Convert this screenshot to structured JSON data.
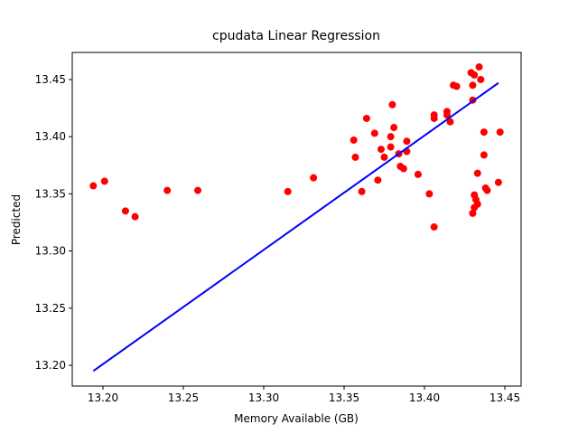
{
  "chart_data": {
    "type": "scatter",
    "title": "cpudata Linear Regression",
    "x_label": "Memory Available (GB)",
    "y_label": "Predicted",
    "xlim": [
      13.1809,
      13.4601
    ],
    "ylim": [
      13.1818,
      13.4737
    ],
    "xticks": [
      {
        "value": 13.2,
        "label": "13.20"
      },
      13.25,
      {
        "value": 13.3,
        "label": "13.30"
      },
      13.35,
      {
        "value": 13.4,
        "label": "13.40"
      },
      13.45
    ],
    "yticks": [
      {
        "value": 13.2,
        "label": "13.20"
      },
      13.25,
      {
        "value": 13.3,
        "label": "13.30"
      },
      13.35,
      {
        "value": 13.4,
        "label": "13.40"
      },
      13.45
    ],
    "series": [
      {
        "type": "scatter",
        "color": "#ff0000",
        "x": [
          13.194,
          13.201,
          13.214,
          13.22,
          13.24,
          13.259,
          13.315,
          13.331,
          13.356,
          13.357,
          13.361,
          13.364,
          13.369,
          13.371,
          13.373,
          13.375,
          13.379,
          13.38,
          13.379,
          13.381,
          13.384,
          13.385,
          13.387,
          13.389,
          13.389,
          13.396,
          13.403,
          13.406,
          13.406,
          13.406,
          13.414,
          13.414,
          13.416,
          13.418,
          13.42,
          13.429,
          13.43,
          13.431,
          13.43,
          13.431,
          13.432,
          13.431,
          13.43,
          13.433,
          13.433,
          13.434,
          13.435,
          13.437,
          13.437,
          13.438,
          13.439,
          13.447,
          13.446
        ],
        "values": [
          13.357,
          13.361,
          13.335,
          13.33,
          13.353,
          13.353,
          13.352,
          13.364,
          13.397,
          13.382,
          13.352,
          13.416,
          13.403,
          13.362,
          13.389,
          13.382,
          13.391,
          13.428,
          13.4,
          13.408,
          13.385,
          13.374,
          13.372,
          13.396,
          13.387,
          13.367,
          13.35,
          13.419,
          13.416,
          13.321,
          13.422,
          13.419,
          13.413,
          13.445,
          13.444,
          13.456,
          13.432,
          13.454,
          13.445,
          13.349,
          13.345,
          13.338,
          13.333,
          13.368,
          13.341,
          13.461,
          13.45,
          13.384,
          13.404,
          13.355,
          13.353,
          13.404,
          13.36
        ]
      },
      {
        "type": "line",
        "color": "#0000ff",
        "x": [
          13.194,
          13.446
        ],
        "values": [
          13.195,
          13.447
        ]
      }
    ]
  }
}
